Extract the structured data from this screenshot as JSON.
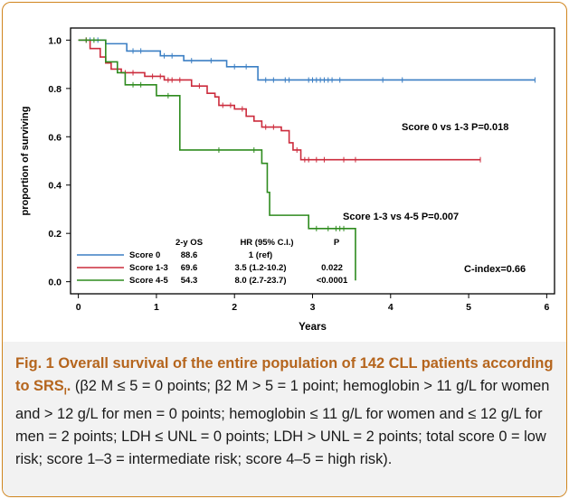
{
  "figure": {
    "label": "Fig. 1",
    "title": "Overall survival of the entire population of 142 CLL patients according to SRS",
    "title_subscript": "I",
    "title_end": ".",
    "caption_body": "(β2 M ≤ 5 = 0 points; β2 M > 5 = 1 point; hemoglobin > 11 g/L for women and > 12 g/L for men = 0 points; hemoglobin ≤ 11 g/L for women and ≤ 12 g/L for men = 2 points; LDH ≤ UNL = 0 points; LDH > UNL = 2 points; total score 0 = low risk; score 1–3 = intermediate risk; score 4–5 = high risk)."
  },
  "chart_data": {
    "type": "line",
    "xlabel": "Years",
    "ylabel": "proportion of surviving",
    "xlim": [
      -0.1,
      6.1
    ],
    "ylim": [
      -0.05,
      1.05
    ],
    "xticks": [
      "0",
      "1",
      "2",
      "3",
      "4",
      "5",
      "6"
    ],
    "yticks": [
      "0.0",
      "0.2",
      "0.4",
      "0.6",
      "0.8",
      "1.0"
    ],
    "colors": {
      "score0": "#3b7fc4",
      "score13": "#cc2b3c",
      "score45": "#2e8b1e"
    },
    "series": [
      {
        "name": "Score 0",
        "color": "#3b7fc4",
        "steps": [
          [
            0,
            1.0
          ],
          [
            0.35,
            0.985
          ],
          [
            0.62,
            0.955
          ],
          [
            1.05,
            0.935
          ],
          [
            1.35,
            0.915
          ],
          [
            1.9,
            0.89
          ],
          [
            2.3,
            0.835
          ],
          [
            5.85,
            0.835
          ]
        ],
        "censors": [
          [
            0.15,
            1.0
          ],
          [
            0.25,
            1.0
          ],
          [
            0.7,
            0.955
          ],
          [
            0.8,
            0.955
          ],
          [
            1.1,
            0.935
          ],
          [
            1.2,
            0.935
          ],
          [
            1.45,
            0.915
          ],
          [
            1.7,
            0.915
          ],
          [
            2.0,
            0.89
          ],
          [
            2.15,
            0.89
          ],
          [
            2.4,
            0.835
          ],
          [
            2.5,
            0.835
          ],
          [
            2.65,
            0.835
          ],
          [
            2.7,
            0.835
          ],
          [
            2.95,
            0.835
          ],
          [
            3.0,
            0.835
          ],
          [
            3.05,
            0.835
          ],
          [
            3.1,
            0.835
          ],
          [
            3.15,
            0.835
          ],
          [
            3.2,
            0.835
          ],
          [
            3.25,
            0.835
          ],
          [
            3.35,
            0.835
          ],
          [
            3.9,
            0.835
          ],
          [
            4.15,
            0.835
          ],
          [
            5.85,
            0.835
          ]
        ]
      },
      {
        "name": "Score 1-3",
        "color": "#cc2b3c",
        "steps": [
          [
            0,
            1.0
          ],
          [
            0.15,
            0.965
          ],
          [
            0.28,
            0.93
          ],
          [
            0.35,
            0.905
          ],
          [
            0.42,
            0.88
          ],
          [
            0.55,
            0.865
          ],
          [
            0.85,
            0.85
          ],
          [
            1.1,
            0.835
          ],
          [
            1.45,
            0.81
          ],
          [
            1.65,
            0.78
          ],
          [
            1.75,
            0.765
          ],
          [
            1.8,
            0.73
          ],
          [
            2.0,
            0.715
          ],
          [
            2.15,
            0.685
          ],
          [
            2.25,
            0.665
          ],
          [
            2.35,
            0.64
          ],
          [
            2.6,
            0.625
          ],
          [
            2.7,
            0.575
          ],
          [
            2.75,
            0.545
          ],
          [
            2.85,
            0.505
          ],
          [
            5.15,
            0.505
          ]
        ],
        "censors": [
          [
            0.1,
            1.0
          ],
          [
            0.6,
            0.865
          ],
          [
            0.7,
            0.865
          ],
          [
            0.95,
            0.85
          ],
          [
            1.05,
            0.85
          ],
          [
            1.15,
            0.835
          ],
          [
            1.2,
            0.835
          ],
          [
            1.3,
            0.835
          ],
          [
            1.55,
            0.81
          ],
          [
            1.85,
            0.73
          ],
          [
            1.95,
            0.73
          ],
          [
            2.1,
            0.715
          ],
          [
            2.4,
            0.64
          ],
          [
            2.5,
            0.64
          ],
          [
            2.8,
            0.545
          ],
          [
            2.9,
            0.505
          ],
          [
            2.95,
            0.505
          ],
          [
            3.05,
            0.505
          ],
          [
            3.15,
            0.505
          ],
          [
            3.4,
            0.505
          ],
          [
            3.55,
            0.505
          ],
          [
            5.15,
            0.505
          ]
        ]
      },
      {
        "name": "Score 4-5",
        "color": "#2e8b1e",
        "steps": [
          [
            0,
            1.0
          ],
          [
            0.35,
            0.91
          ],
          [
            0.5,
            0.865
          ],
          [
            0.6,
            0.815
          ],
          [
            1.0,
            0.77
          ],
          [
            1.3,
            0.725
          ],
          [
            1.3,
            0.545
          ],
          [
            2.35,
            0.49
          ],
          [
            2.42,
            0.37
          ],
          [
            2.45,
            0.275
          ],
          [
            2.95,
            0.22
          ],
          [
            3.55,
            0.22
          ],
          [
            3.55,
            0.005
          ]
        ],
        "censors": [
          [
            0.1,
            1.0
          ],
          [
            0.2,
            1.0
          ],
          [
            0.7,
            0.815
          ],
          [
            0.8,
            0.815
          ],
          [
            1.15,
            0.77
          ],
          [
            1.8,
            0.545
          ],
          [
            2.25,
            0.545
          ],
          [
            3.05,
            0.22
          ],
          [
            3.2,
            0.22
          ],
          [
            3.3,
            0.22
          ],
          [
            3.35,
            0.22
          ],
          [
            3.4,
            0.22
          ]
        ]
      }
    ],
    "annotations": [
      "Score 0 vs 1-3 P=0.018",
      "Score 1-3 vs 4-5 P=0.007",
      "C-index=0.66"
    ],
    "legend_table": {
      "headers": [
        "2-y OS",
        "HR (95% C.I.)",
        "P"
      ],
      "rows": [
        {
          "label": "Score 0",
          "os": "88.6",
          "hr": "1 (ref)",
          "p": ""
        },
        {
          "label": "Score 1-3",
          "os": "69.6",
          "hr": "3.5 (1.2-10.2)",
          "p": "0.022"
        },
        {
          "label": "Score 4-5",
          "os": "54.3",
          "hr": "8.0 (2.7-23.7)",
          "p": "<0.0001"
        }
      ]
    }
  }
}
